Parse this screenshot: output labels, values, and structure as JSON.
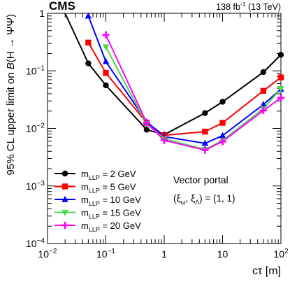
{
  "header": {
    "experiment": "CMS",
    "luminosity": "138 fb",
    "lumi_exp": "-1",
    "energy": " (13 TeV)"
  },
  "axes": {
    "x_label_main": "cτ [m]",
    "y_label_prefix": "95% CL upper limit on ",
    "y_label_B": "B",
    "y_label_suffix": "(H → ΨΨ)",
    "x_ticks": [
      {
        "value": 0.01,
        "base": "10",
        "exp": "−2"
      },
      {
        "value": 0.1,
        "base": "10",
        "exp": "−1"
      },
      {
        "value": 1,
        "base": "1",
        "exp": ""
      },
      {
        "value": 10,
        "base": "10",
        "exp": ""
      },
      {
        "value": 100,
        "base": "10",
        "exp": "2"
      }
    ],
    "y_ticks": [
      {
        "value": 0.0001,
        "base": "10",
        "exp": "−4"
      },
      {
        "value": 0.001,
        "base": "10",
        "exp": "−3"
      },
      {
        "value": 0.01,
        "base": "10",
        "exp": "−2"
      },
      {
        "value": 0.1,
        "base": "10",
        "exp": "−1"
      },
      {
        "value": 1,
        "base": "1",
        "exp": ""
      }
    ]
  },
  "annotation": {
    "line1": "Vector portal",
    "line2_prefix": "(ξ",
    "line2_sub1": "ω",
    "line2_mid": ", ξ",
    "line2_sub2": "Λ",
    "line2_suffix": ")  = (1, 1)"
  },
  "chart_data": {
    "type": "line",
    "x_scale": "log",
    "y_scale": "log",
    "xlim": [
      0.01,
      100
    ],
    "ylim": [
      0.0001,
      1
    ],
    "xlabel": "cτ [m]",
    "ylabel": "95% CL upper limit on B(H → ΨΨ)",
    "legend_position": "bottom-left",
    "series": [
      {
        "name": "m_LLP = 2 GeV",
        "legend_label": "= 2 GeV",
        "color": "#000000",
        "marker": "circle",
        "x": [
          0.02,
          0.05,
          0.1,
          0.5,
          1,
          5,
          10,
          50,
          100
        ],
        "y": [
          1.0,
          0.135,
          0.056,
          0.0095,
          0.0078,
          0.0185,
          0.029,
          0.095,
          0.19
        ]
      },
      {
        "name": "m_LLP = 5 GeV",
        "legend_label": "= 5 GeV",
        "color": "#ff0000",
        "marker": "square",
        "x": [
          0.05,
          0.1,
          0.5,
          1,
          5,
          10,
          50,
          100
        ],
        "y": [
          0.31,
          0.092,
          0.0125,
          0.0076,
          0.0088,
          0.0125,
          0.045,
          0.077
        ]
      },
      {
        "name": "m_LLP = 10 GeV",
        "legend_label": "= 10 GeV",
        "color": "#0000ff",
        "marker": "triangle-up",
        "x": [
          0.05,
          0.1,
          0.5,
          1,
          5,
          10,
          50,
          100
        ],
        "y": [
          0.9,
          0.145,
          0.013,
          0.0072,
          0.0055,
          0.0075,
          0.026,
          0.048
        ]
      },
      {
        "name": "m_LLP = 15 GeV",
        "legend_label": "= 15 GeV",
        "color": "#4cd94c",
        "marker": "triangle-down",
        "x": [
          0.1,
          0.5,
          1,
          5,
          10,
          50,
          100
        ],
        "y": [
          0.26,
          0.012,
          0.0066,
          0.0043,
          0.0062,
          0.022,
          0.049
        ]
      },
      {
        "name": "m_LLP = 20 GeV",
        "legend_label": "= 20 GeV",
        "color": "#ff00ff",
        "marker": "star",
        "x": [
          0.1,
          0.5,
          1,
          5,
          10,
          50,
          100
        ],
        "y": [
          0.42,
          0.0125,
          0.0062,
          0.0042,
          0.0059,
          0.0205,
          0.034
        ]
      }
    ]
  }
}
